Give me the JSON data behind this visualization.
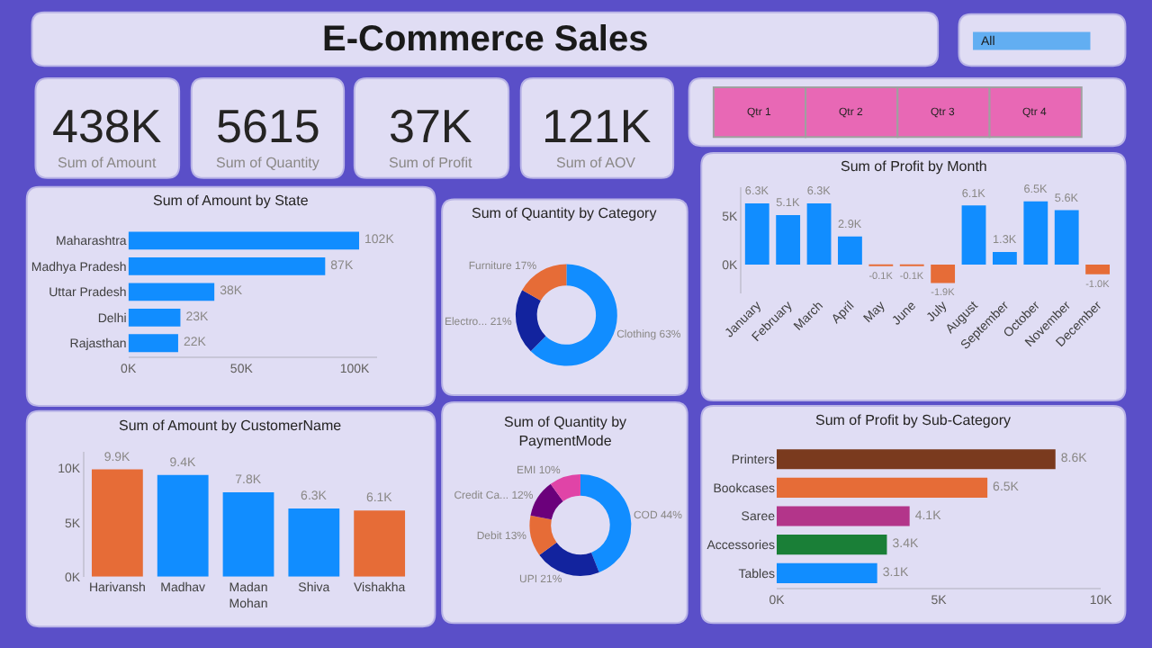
{
  "chart_data": [
    {
      "type": "other",
      "title": "E-Commerce Sales"
    },
    {
      "type": "other",
      "annotations": [
        "All"
      ]
    },
    {
      "type": "other",
      "annotations": [
        "438K",
        "Sum of Amount"
      ]
    },
    {
      "type": "other",
      "annotations": [
        "5615",
        "Sum of Quantity"
      ]
    },
    {
      "type": "other",
      "annotations": [
        "37K",
        "Sum of Profit"
      ]
    },
    {
      "type": "other",
      "annotations": [
        "121K",
        "Sum of AOV"
      ]
    },
    {
      "type": "other",
      "annotations": [
        "Qtr 1",
        "Qtr 2",
        "Qtr 3",
        "Qtr 4"
      ]
    },
    {
      "type": "bar",
      "orientation": "horizontal",
      "title": "Sum of Amount by State",
      "categories": [
        "Maharashtra",
        "Madhya Pradesh",
        "Uttar Pradesh",
        "Delhi",
        "Rajasthan"
      ],
      "values": [
        102000,
        87000,
        38000,
        23000,
        22000
      ],
      "value_labels": [
        "102K",
        "87K",
        "38K",
        "23K",
        "22K"
      ],
      "color": "#118dff",
      "xlim": [
        0,
        110000
      ],
      "xticks": [
        {
          "value": 0,
          "label": "0K"
        },
        {
          "value": 50000,
          "label": "50K"
        },
        {
          "value": 100000,
          "label": "100K"
        }
      ]
    },
    {
      "type": "donut",
      "title": "Sum of Quantity by Category",
      "categories": [
        "Clothing",
        "Electro...",
        "Furniture"
      ],
      "values": [
        63,
        21,
        17
      ],
      "value_labels": [
        "63%",
        "21%",
        "17%"
      ],
      "colors": [
        "#118dff",
        "#12239e",
        "#e66c37"
      ]
    },
    {
      "type": "bar",
      "title": "Sum of Profit by Month",
      "categories": [
        "January",
        "February",
        "March",
        "April",
        "May",
        "June",
        "July",
        "August",
        "September",
        "October",
        "November",
        "December"
      ],
      "values": [
        6300,
        5100,
        6300,
        2900,
        -100,
        -100,
        -1900,
        6100,
        1300,
        6500,
        5600,
        -1000
      ],
      "value_labels": [
        "6.3K",
        "5.1K",
        "6.3K",
        "2.9K",
        "-0.1K",
        "-0.1K",
        "-1.9K",
        "6.1K",
        "1.3K",
        "6.5K",
        "5.6K",
        "-1.0K"
      ],
      "colors": [
        "#118dff",
        "#118dff",
        "#118dff",
        "#118dff",
        "#e66c37",
        "#e66c37",
        "#e66c37",
        "#118dff",
        "#118dff",
        "#118dff",
        "#118dff",
        "#e66c37"
      ],
      "ylim": [
        -3000,
        8000
      ],
      "yticks": [
        {
          "value": 0,
          "label": "0K"
        },
        {
          "value": 5000,
          "label": "5K"
        }
      ]
    },
    {
      "type": "bar",
      "title": "Sum of Amount by CustomerName",
      "categories": [
        "Harivansh",
        "Madhav",
        "Madan Mohan",
        "Shiva",
        "Vishakha"
      ],
      "values": [
        9900,
        9400,
        7800,
        6300,
        6100
      ],
      "value_labels": [
        "9.9K",
        "9.4K",
        "7.8K",
        "6.3K",
        "6.1K"
      ],
      "colors": [
        "#e66c37",
        "#118dff",
        "#118dff",
        "#118dff",
        "#e66c37"
      ],
      "ylim": [
        0,
        11500
      ],
      "yticks": [
        {
          "value": 0,
          "label": "0K"
        },
        {
          "value": 5000,
          "label": "5K"
        },
        {
          "value": 10000,
          "label": "10K"
        }
      ]
    },
    {
      "type": "donut",
      "title": "Sum of Quantity by PaymentMode",
      "categories": [
        "COD",
        "UPI",
        "Debit",
        "Credit Ca...",
        "EMI"
      ],
      "values": [
        44,
        21,
        13,
        12,
        10
      ],
      "value_labels": [
        "44%",
        "21%",
        "13%",
        "12%",
        "10%"
      ],
      "colors": [
        "#118dff",
        "#12239e",
        "#e66c37",
        "#6b007b",
        "#e044a7"
      ]
    },
    {
      "type": "bar",
      "orientation": "horizontal",
      "title": "Sum of Profit by Sub-Category",
      "categories": [
        "Printers",
        "Bookcases",
        "Saree",
        "Accessories",
        "Tables"
      ],
      "values": [
        8600,
        6500,
        4100,
        3400,
        3100
      ],
      "value_labels": [
        "8.6K",
        "6.5K",
        "4.1K",
        "3.4K",
        "3.1K"
      ],
      "colors": [
        "#7a3a1e",
        "#e66c37",
        "#b3358a",
        "#1a7f37",
        "#118dff"
      ],
      "xlim": [
        0,
        10000
      ],
      "xticks": [
        {
          "value": 0,
          "label": "0K"
        },
        {
          "value": 5000,
          "label": "5K"
        },
        {
          "value": 10000,
          "label": "10K"
        }
      ]
    }
  ]
}
